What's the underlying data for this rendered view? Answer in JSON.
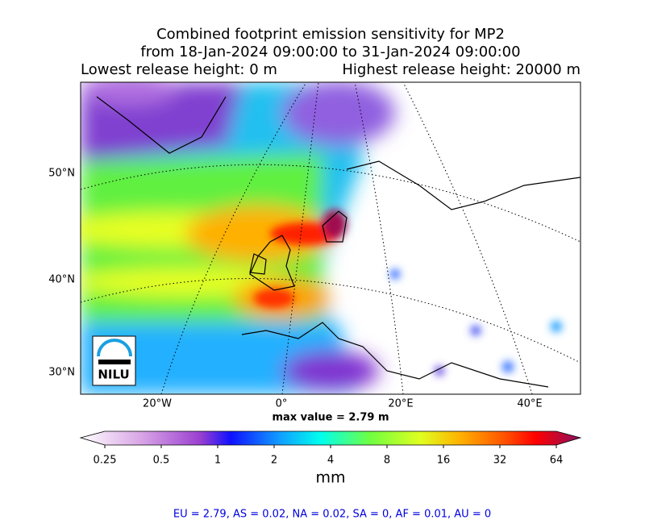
{
  "title": {
    "line1": "Combined footprint emission sensitivity for MP2",
    "line2": "from 18-Jan-2024 09:00:00 to 31-Jan-2024 09:00:00",
    "lowest": "Lowest release height: 0 m",
    "highest": "Highest release height: 20000 m"
  },
  "map": {
    "lat_labels": [
      "50°N",
      "40°N",
      "30°N"
    ],
    "lon_labels": [
      "20°W",
      "0°",
      "20°E",
      "40°E"
    ],
    "logo": "NILU",
    "max_value": "max value = 2.79 m"
  },
  "colorbar": {
    "ticks": [
      "0.25",
      "0.5",
      "1",
      "2",
      "4",
      "8",
      "16",
      "32",
      "64"
    ],
    "unit": "mm"
  },
  "footer": "EU = 2.79,  AS = 0.02,  NA = 0.02,  SA = 0,  AF = 0.01,  AU = 0"
}
